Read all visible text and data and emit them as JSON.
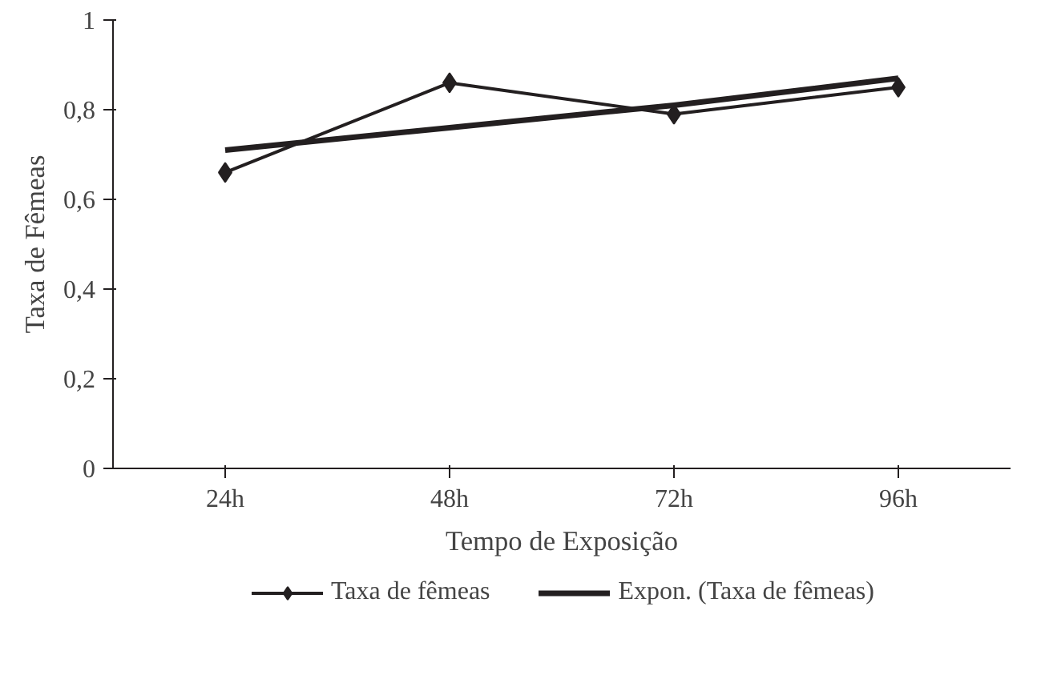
{
  "chart_data": {
    "type": "line",
    "xlabel": "Tempo de Exposição",
    "ylabel": "Taxa de Fêmeas",
    "categories": [
      "24h",
      "48h",
      "72h",
      "96h"
    ],
    "series": [
      {
        "name": "Taxa de fêmeas",
        "color": "#231f20",
        "values": [
          0.66,
          0.86,
          0.79,
          0.85
        ],
        "marker": "diamond"
      },
      {
        "name": "Expon. (Taxa de fêmeas)",
        "color": "#231f20",
        "values": [
          0.71,
          0.76,
          0.81,
          0.87
        ],
        "marker": "none"
      }
    ],
    "ylim": [
      0,
      1
    ],
    "yticks": [
      {
        "value": 0,
        "label": "0"
      },
      {
        "value": 0.2,
        "label": "0,2"
      },
      {
        "value": 0.4,
        "label": "0,4"
      },
      {
        "value": 0.6,
        "label": "0,6"
      },
      {
        "value": 0.8,
        "label": "0,8"
      },
      {
        "value": 1,
        "label": "1"
      }
    ],
    "grid": false,
    "legend": "bottom",
    "line_style": "solid"
  }
}
